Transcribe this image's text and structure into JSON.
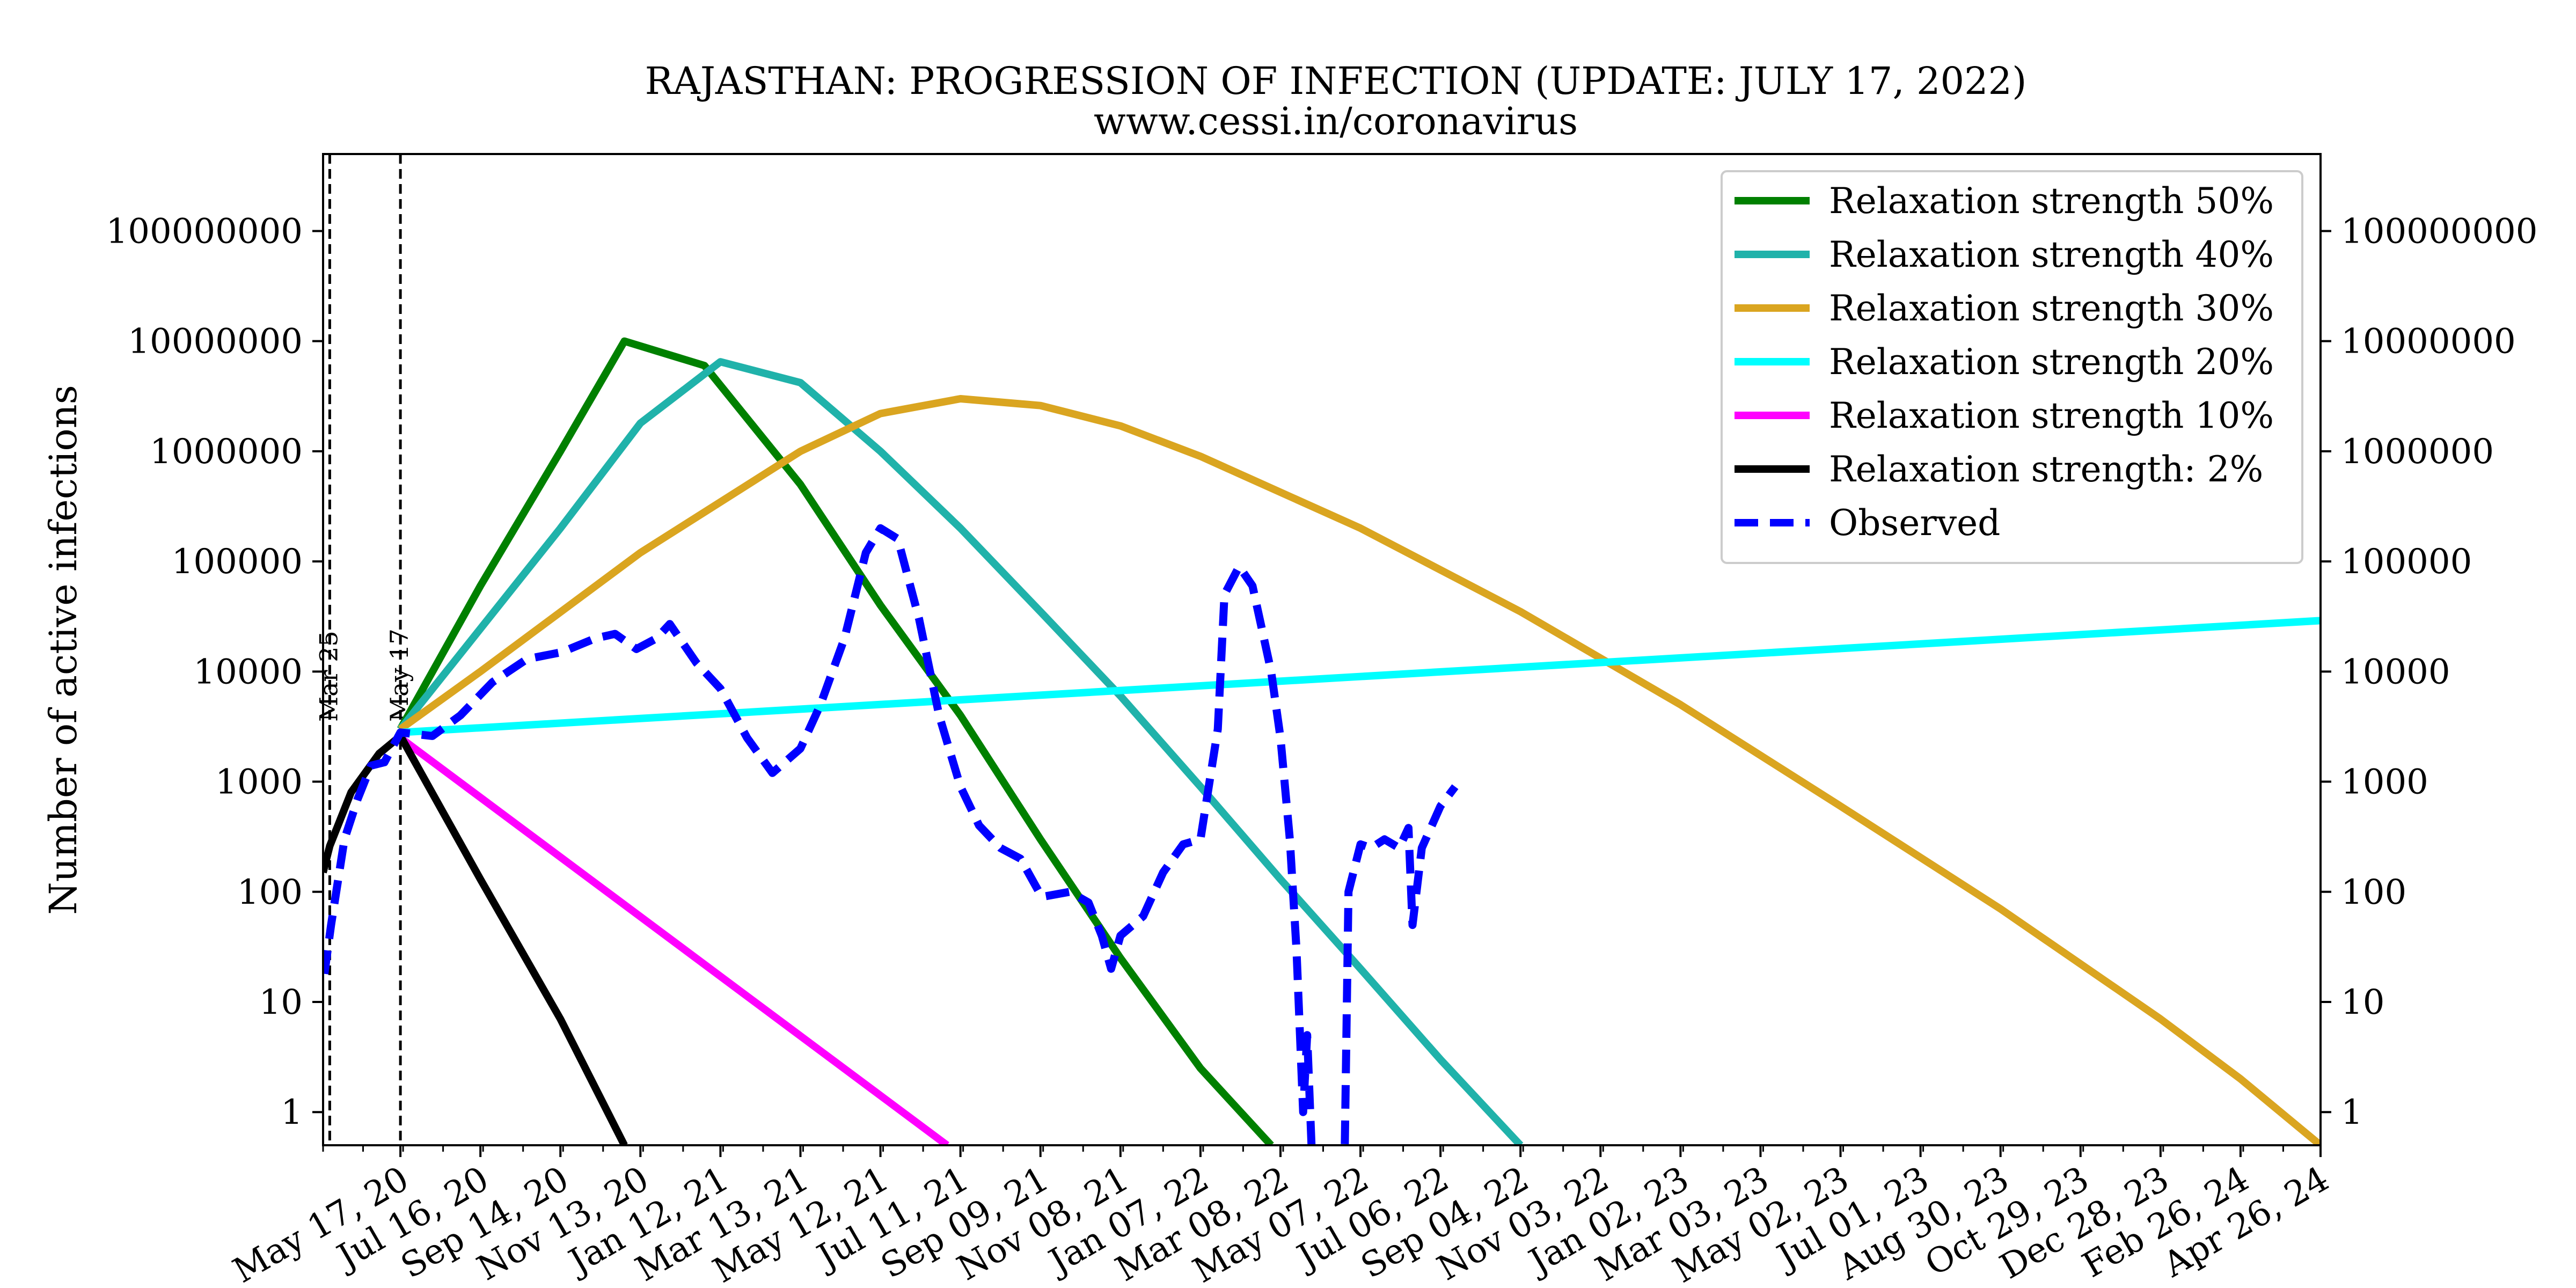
{
  "chart_data": {
    "type": "line",
    "title": "RAJASTHAN: PROGRESSION OF INFECTION (UPDATE: JULY 17, 2022)",
    "subtitle": "www.cessi.in/coronavirus",
    "ylabel": "Number of active infections",
    "xlabel": "",
    "y_scale": "log",
    "ylim": [
      0.5,
      500000000
    ],
    "y_ticks": [
      1,
      10,
      100,
      1000,
      10000,
      100000,
      1000000,
      10000000,
      100000000
    ],
    "y_tick_labels": [
      "1",
      "10",
      "100",
      "1000",
      "10000",
      "100000",
      "1000000",
      "10000000",
      "100000000"
    ],
    "xlim": [
      "2020-03-20",
      "2024-04-26"
    ],
    "x_ticks": [
      "2020-05-17",
      "2020-07-16",
      "2020-09-14",
      "2020-11-13",
      "2021-01-12",
      "2021-03-13",
      "2021-05-12",
      "2021-07-11",
      "2021-09-09",
      "2021-11-08",
      "2022-01-07",
      "2022-03-08",
      "2022-05-07",
      "2022-07-06",
      "2022-09-04",
      "2022-11-03",
      "2023-01-02",
      "2023-03-03",
      "2023-05-02",
      "2023-07-01",
      "2023-08-30",
      "2023-10-29",
      "2023-12-28",
      "2024-02-26",
      "2024-04-26"
    ],
    "x_tick_labels": [
      "May 17, 20",
      "Jul 16, 20",
      "Sep 14, 20",
      "Nov 13, 20",
      "Jan 12, 21",
      "Mar 13, 21",
      "May 12, 21",
      "Jul 11, 21",
      "Sep 09, 21",
      "Nov 08, 21",
      "Jan 07, 22",
      "Mar 08, 22",
      "May 07, 22",
      "Jul 06, 22",
      "Sep 04, 22",
      "Nov 03, 22",
      "Jan 02, 23",
      "Mar 03, 23",
      "May 02, 23",
      "Jul 01, 23",
      "Aug 30, 23",
      "Oct 29, 23",
      "Dec 28, 23",
      "Feb 26, 24",
      "Apr 26, 24"
    ],
    "vertical_lines": [
      {
        "date": "2020-03-25",
        "label": "Mar 25",
        "style": "dashed"
      },
      {
        "date": "2020-05-17",
        "label": "May 17",
        "style": "dashed"
      }
    ],
    "grid": false,
    "legend_position": "top-right",
    "series": [
      {
        "name": "Relaxation strength 50%",
        "color": "#008000",
        "style": "solid",
        "points": [
          [
            "2020-05-17",
            3000
          ],
          [
            "2020-07-16",
            60000
          ],
          [
            "2020-09-14",
            1000000
          ],
          [
            "2020-11-01",
            10000000
          ],
          [
            "2020-12-31",
            6000000
          ],
          [
            "2021-03-13",
            500000
          ],
          [
            "2021-05-12",
            40000
          ],
          [
            "2021-07-11",
            4000
          ],
          [
            "2021-09-09",
            300
          ],
          [
            "2021-11-08",
            25
          ],
          [
            "2022-01-07",
            2.5
          ],
          [
            "2022-03-01",
            0.5
          ]
        ]
      },
      {
        "name": "Relaxation strength 40%",
        "color": "#20b2aa",
        "style": "solid",
        "points": [
          [
            "2020-05-17",
            3000
          ],
          [
            "2020-09-14",
            200000
          ],
          [
            "2020-11-13",
            1800000
          ],
          [
            "2021-01-12",
            6500000
          ],
          [
            "2021-03-13",
            4200000
          ],
          [
            "2021-05-12",
            1000000
          ],
          [
            "2021-07-11",
            200000
          ],
          [
            "2021-09-09",
            35000
          ],
          [
            "2021-11-08",
            6000
          ],
          [
            "2022-01-07",
            900
          ],
          [
            "2022-03-08",
            130
          ],
          [
            "2022-05-07",
            20
          ],
          [
            "2022-07-06",
            3
          ],
          [
            "2022-09-04",
            0.5
          ]
        ]
      },
      {
        "name": "Relaxation strength 30%",
        "color": "#daa520",
        "style": "solid",
        "points": [
          [
            "2020-05-17",
            3000
          ],
          [
            "2020-07-16",
            10000
          ],
          [
            "2020-11-13",
            120000
          ],
          [
            "2021-03-13",
            1000000
          ],
          [
            "2021-05-12",
            2200000
          ],
          [
            "2021-07-11",
            3000000
          ],
          [
            "2021-09-09",
            2600000
          ],
          [
            "2021-11-08",
            1700000
          ],
          [
            "2022-01-07",
            900000
          ],
          [
            "2022-05-07",
            200000
          ],
          [
            "2022-09-04",
            35000
          ],
          [
            "2023-01-02",
            5000
          ],
          [
            "2023-05-02",
            600
          ],
          [
            "2023-08-30",
            70
          ],
          [
            "2023-12-28",
            7
          ],
          [
            "2024-02-26",
            2
          ],
          [
            "2024-04-26",
            0.5
          ]
        ]
      },
      {
        "name": "Relaxation strength 20%",
        "color": "#00ffff",
        "style": "solid",
        "points": [
          [
            "2020-05-17",
            2800
          ],
          [
            "2024-04-26",
            29000
          ]
        ]
      },
      {
        "name": "Relaxation strength 10%",
        "color": "#ff00ff",
        "style": "solid",
        "points": [
          [
            "2020-05-17",
            2500
          ],
          [
            "2021-07-01",
            0.5
          ]
        ]
      },
      {
        "name": "Relaxation strength: 2%",
        "color": "#000000",
        "style": "solid",
        "points": [
          [
            "2020-03-20",
            150
          ],
          [
            "2020-03-25",
            260
          ],
          [
            "2020-04-10",
            800
          ],
          [
            "2020-05-01",
            1800
          ],
          [
            "2020-05-17",
            2600
          ],
          [
            "2020-07-16",
            130
          ],
          [
            "2020-09-14",
            7
          ],
          [
            "2020-11-01",
            0.5
          ]
        ]
      },
      {
        "name": "Observed",
        "color": "#0000ff",
        "style": "dashed",
        "points": [
          [
            "2020-03-21",
            18
          ],
          [
            "2020-03-26",
            50
          ],
          [
            "2020-04-05",
            300
          ],
          [
            "2020-04-15",
            700
          ],
          [
            "2020-04-25",
            1400
          ],
          [
            "2020-05-05",
            1500
          ],
          [
            "2020-05-17",
            2800
          ],
          [
            "2020-06-10",
            2600
          ],
          [
            "2020-07-01",
            4000
          ],
          [
            "2020-07-25",
            8000
          ],
          [
            "2020-08-20",
            13000
          ],
          [
            "2020-09-15",
            15000
          ],
          [
            "2020-10-10",
            20000
          ],
          [
            "2020-10-25",
            22000
          ],
          [
            "2020-11-10",
            16000
          ],
          [
            "2020-11-25",
            20000
          ],
          [
            "2020-12-05",
            27000
          ],
          [
            "2020-12-25",
            12000
          ],
          [
            "2021-01-12",
            7000
          ],
          [
            "2021-02-01",
            2500
          ],
          [
            "2021-02-20",
            1200
          ],
          [
            "2021-03-13",
            2000
          ],
          [
            "2021-03-28",
            5000
          ],
          [
            "2021-04-15",
            20000
          ],
          [
            "2021-05-01",
            120000
          ],
          [
            "2021-05-12",
            200000
          ],
          [
            "2021-05-25",
            160000
          ],
          [
            "2021-06-10",
            30000
          ],
          [
            "2021-06-25",
            4000
          ],
          [
            "2021-07-11",
            900
          ],
          [
            "2021-07-25",
            400
          ],
          [
            "2021-08-10",
            250
          ],
          [
            "2021-08-25",
            200
          ],
          [
            "2021-09-10",
            90
          ],
          [
            "2021-10-01",
            100
          ],
          [
            "2021-10-15",
            80
          ],
          [
            "2021-10-25",
            40
          ],
          [
            "2021-11-01",
            20
          ],
          [
            "2021-11-08",
            40
          ],
          [
            "2021-11-25",
            60
          ],
          [
            "2021-12-10",
            150
          ],
          [
            "2021-12-25",
            270
          ],
          [
            "2022-01-07",
            300
          ],
          [
            "2022-01-20",
            3000
          ],
          [
            "2022-01-25",
            50000
          ],
          [
            "2022-02-05",
            90000
          ],
          [
            "2022-02-15",
            60000
          ],
          [
            "2022-03-01",
            10000
          ],
          [
            "2022-03-08",
            2500
          ],
          [
            "2022-03-15",
            300
          ],
          [
            "2022-03-20",
            30
          ],
          [
            "2022-03-25",
            1
          ],
          [
            "2022-03-28",
            5
          ],
          [
            "2022-04-01",
            0.3
          ],
          [
            "2022-04-25",
            0.3
          ],
          [
            "2022-04-28",
            100
          ],
          [
            "2022-05-07",
            270
          ],
          [
            "2022-05-15",
            250
          ],
          [
            "2022-05-25",
            300
          ],
          [
            "2022-06-05",
            250
          ],
          [
            "2022-06-12",
            380
          ],
          [
            "2022-06-15",
            50
          ],
          [
            "2022-06-22",
            250
          ],
          [
            "2022-07-06",
            600
          ],
          [
            "2022-07-17",
            900
          ]
        ]
      }
    ]
  }
}
